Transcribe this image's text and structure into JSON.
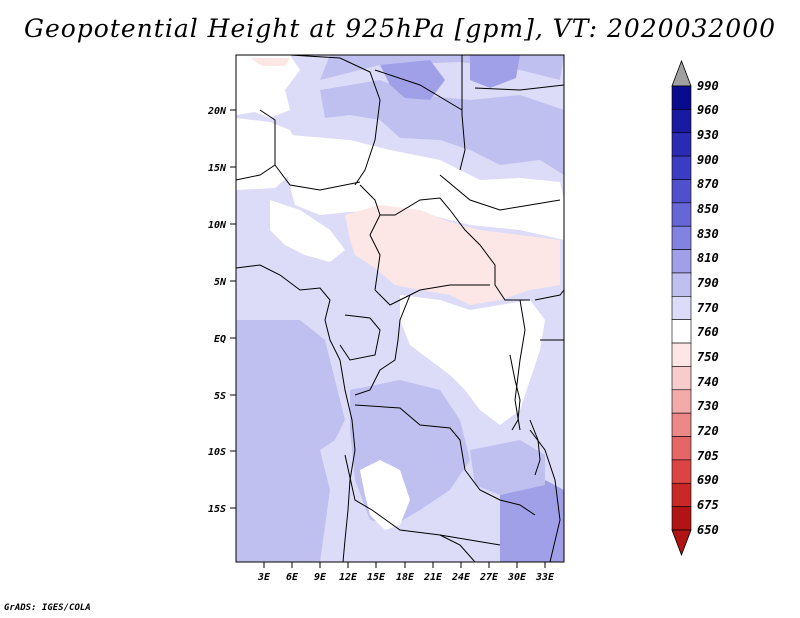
{
  "title": "Geopotential Height at 925hPa [gpm], VT: 2020032000",
  "footer": "GrADS: IGES/COLA",
  "map": {
    "variable": "Geopotential Height",
    "level": "925hPa",
    "units": "gpm",
    "valid_time": "2020032000",
    "lat_labels": [
      "20N",
      "15N",
      "10N",
      "5N",
      "EQ",
      "5S",
      "10S",
      "15S"
    ],
    "lon_labels": [
      "3E",
      "6E",
      "9E",
      "12E",
      "15E",
      "18E",
      "21E",
      "24E",
      "27E",
      "30E",
      "33E"
    ]
  },
  "colorbar": {
    "levels": [
      "990",
      "960",
      "930",
      "900",
      "870",
      "850",
      "830",
      "810",
      "790",
      "770",
      "760",
      "750",
      "740",
      "730",
      "720",
      "705",
      "690",
      "675",
      "650"
    ],
    "colors": [
      "#0a0a8c",
      "#1a1aa0",
      "#2a2ab4",
      "#3c3cc3",
      "#5050cd",
      "#6666d6",
      "#8282e0",
      "#a0a0e8",
      "#c0c0f0",
      "#dcdcf8",
      "#ffffff",
      "#fce6e6",
      "#f8cccc",
      "#f2aaaa",
      "#ec8888",
      "#e46666",
      "#dc4444",
      "#c82828",
      "#b01414"
    ],
    "top_arrow_color": "#a0a0a0",
    "bottom_arrow_color": "#b01414"
  }
}
